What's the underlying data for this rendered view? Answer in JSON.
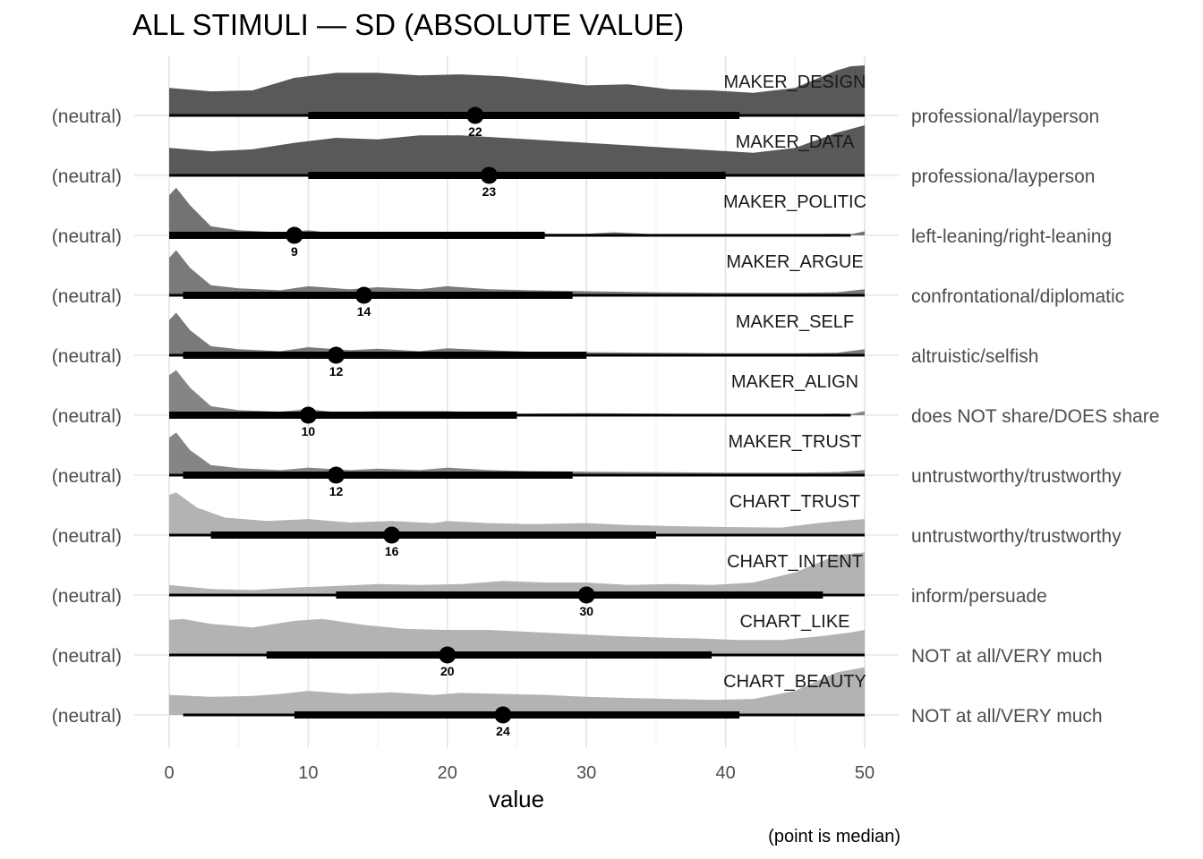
{
  "chart_data": {
    "type": "ridgeline",
    "title": "ALL STIMULI — SD (ABSOLUTE VALUE)",
    "xlabel": "value",
    "caption": "(point is median)",
    "xlim": [
      0,
      50
    ],
    "xticks": [
      0,
      10,
      20,
      30,
      40,
      50
    ],
    "grid": true,
    "left_label": "(neutral)",
    "rows": [
      {
        "name": "MAKER_DESIGN",
        "right_label": "professional/layperson",
        "median": 22,
        "interval_inner": [
          10,
          41
        ],
        "interval_outer": [
          0,
          50
        ],
        "color": "#595959",
        "density": [
          [
            0,
            0.55
          ],
          [
            3,
            0.48
          ],
          [
            6,
            0.5
          ],
          [
            9,
            0.75
          ],
          [
            12,
            0.85
          ],
          [
            15,
            0.85
          ],
          [
            18,
            0.8
          ],
          [
            21,
            0.82
          ],
          [
            24,
            0.78
          ],
          [
            27,
            0.7
          ],
          [
            30,
            0.6
          ],
          [
            33,
            0.62
          ],
          [
            36,
            0.52
          ],
          [
            39,
            0.5
          ],
          [
            42,
            0.45
          ],
          [
            45,
            0.55
          ],
          [
            48,
            0.9
          ],
          [
            49,
            0.98
          ],
          [
            50,
            1.0
          ]
        ]
      },
      {
        "name": "MAKER_DATA",
        "right_label": "professiona/layperson",
        "median": 23,
        "interval_inner": [
          10,
          40
        ],
        "interval_outer": [
          0,
          50
        ],
        "color": "#595959",
        "density": [
          [
            0,
            0.55
          ],
          [
            3,
            0.48
          ],
          [
            6,
            0.52
          ],
          [
            9,
            0.65
          ],
          [
            12,
            0.75
          ],
          [
            15,
            0.72
          ],
          [
            18,
            0.8
          ],
          [
            21,
            0.8
          ],
          [
            24,
            0.75
          ],
          [
            27,
            0.7
          ],
          [
            30,
            0.65
          ],
          [
            33,
            0.6
          ],
          [
            36,
            0.55
          ],
          [
            39,
            0.5
          ],
          [
            42,
            0.45
          ],
          [
            45,
            0.55
          ],
          [
            48,
            0.85
          ],
          [
            50,
            1.0
          ]
        ]
      },
      {
        "name": "MAKER_POLITIC",
        "right_label": "left-leaning/right-leaning",
        "median": 9,
        "interval_inner": [
          0,
          27
        ],
        "interval_outer": [
          0,
          49
        ],
        "color": "#737373",
        "density": [
          [
            0,
            0.8
          ],
          [
            0.5,
            0.95
          ],
          [
            1.5,
            0.6
          ],
          [
            3,
            0.18
          ],
          [
            5,
            0.1
          ],
          [
            8,
            0.06
          ],
          [
            10,
            0.1
          ],
          [
            12,
            0.04
          ],
          [
            15,
            0.06
          ],
          [
            20,
            0.05
          ],
          [
            25,
            0.03
          ],
          [
            30,
            0.03
          ],
          [
            32,
            0.06
          ],
          [
            35,
            0.02
          ],
          [
            40,
            0.02
          ],
          [
            45,
            0.02
          ],
          [
            48,
            0.03
          ],
          [
            49,
            0.02
          ],
          [
            50,
            0.08
          ]
        ]
      },
      {
        "name": "MAKER_ARGUE",
        "right_label": "confrontational/diplomatic",
        "median": 14,
        "interval_inner": [
          1,
          29
        ],
        "interval_outer": [
          0,
          50
        ],
        "color": "#7a7a7a",
        "density": [
          [
            0,
            0.75
          ],
          [
            0.5,
            0.9
          ],
          [
            1.5,
            0.55
          ],
          [
            3,
            0.2
          ],
          [
            5,
            0.14
          ],
          [
            8,
            0.1
          ],
          [
            10,
            0.18
          ],
          [
            13,
            0.12
          ],
          [
            15,
            0.16
          ],
          [
            18,
            0.12
          ],
          [
            20,
            0.18
          ],
          [
            23,
            0.12
          ],
          [
            26,
            0.1
          ],
          [
            30,
            0.08
          ],
          [
            35,
            0.06
          ],
          [
            40,
            0.05
          ],
          [
            45,
            0.05
          ],
          [
            48,
            0.06
          ],
          [
            50,
            0.12
          ]
        ]
      },
      {
        "name": "MAKER_SELF",
        "right_label": "altruistic/selfish",
        "median": 12,
        "interval_inner": [
          1,
          30
        ],
        "interval_outer": [
          0,
          50
        ],
        "color": "#7a7a7a",
        "density": [
          [
            0,
            0.7
          ],
          [
            0.5,
            0.85
          ],
          [
            1.5,
            0.5
          ],
          [
            3,
            0.18
          ],
          [
            5,
            0.12
          ],
          [
            8,
            0.08
          ],
          [
            10,
            0.16
          ],
          [
            13,
            0.1
          ],
          [
            15,
            0.13
          ],
          [
            18,
            0.08
          ],
          [
            20,
            0.14
          ],
          [
            23,
            0.1
          ],
          [
            26,
            0.07
          ],
          [
            30,
            0.06
          ],
          [
            35,
            0.05
          ],
          [
            40,
            0.04
          ],
          [
            45,
            0.04
          ],
          [
            48,
            0.05
          ],
          [
            50,
            0.12
          ]
        ]
      },
      {
        "name": "MAKER_ALIGN",
        "right_label": "does NOT share/DOES share",
        "median": 10,
        "interval_inner": [
          0,
          25
        ],
        "interval_outer": [
          0,
          49
        ],
        "color": "#858585",
        "density": [
          [
            0,
            0.8
          ],
          [
            0.5,
            0.9
          ],
          [
            1.5,
            0.55
          ],
          [
            3,
            0.18
          ],
          [
            5,
            0.1
          ],
          [
            8,
            0.07
          ],
          [
            10,
            0.12
          ],
          [
            12,
            0.06
          ],
          [
            15,
            0.08
          ],
          [
            20,
            0.08
          ],
          [
            23,
            0.04
          ],
          [
            25,
            0.03
          ],
          [
            30,
            0.04
          ],
          [
            35,
            0.03
          ],
          [
            40,
            0.02
          ],
          [
            45,
            0.02
          ],
          [
            48,
            0.03
          ],
          [
            49,
            0.02
          ],
          [
            50,
            0.08
          ]
        ]
      },
      {
        "name": "MAKER_TRUST",
        "right_label": "untrustworthy/trustworthy",
        "median": 12,
        "interval_inner": [
          1,
          29
        ],
        "interval_outer": [
          0,
          50
        ],
        "color": "#858585",
        "density": [
          [
            0,
            0.75
          ],
          [
            0.5,
            0.85
          ],
          [
            1.5,
            0.5
          ],
          [
            3,
            0.2
          ],
          [
            5,
            0.14
          ],
          [
            8,
            0.1
          ],
          [
            10,
            0.15
          ],
          [
            13,
            0.1
          ],
          [
            15,
            0.13
          ],
          [
            18,
            0.1
          ],
          [
            20,
            0.15
          ],
          [
            23,
            0.1
          ],
          [
            26,
            0.08
          ],
          [
            30,
            0.07
          ],
          [
            35,
            0.06
          ],
          [
            40,
            0.05
          ],
          [
            45,
            0.05
          ],
          [
            48,
            0.06
          ],
          [
            50,
            0.1
          ]
        ]
      },
      {
        "name": "CHART_TRUST",
        "right_label": "untrustworthy/trustworthy",
        "median": 16,
        "interval_inner": [
          3,
          35
        ],
        "interval_outer": [
          0,
          50
        ],
        "color": "#b3b3b3",
        "density": [
          [
            0,
            0.8
          ],
          [
            0.5,
            0.85
          ],
          [
            2,
            0.55
          ],
          [
            4,
            0.35
          ],
          [
            7,
            0.28
          ],
          [
            10,
            0.32
          ],
          [
            13,
            0.25
          ],
          [
            16,
            0.28
          ],
          [
            19,
            0.24
          ],
          [
            20,
            0.28
          ],
          [
            23,
            0.24
          ],
          [
            26,
            0.22
          ],
          [
            30,
            0.24
          ],
          [
            33,
            0.2
          ],
          [
            36,
            0.18
          ],
          [
            40,
            0.16
          ],
          [
            44,
            0.15
          ],
          [
            47,
            0.25
          ],
          [
            49,
            0.3
          ],
          [
            50,
            0.32
          ]
        ]
      },
      {
        "name": "CHART_INTENT",
        "right_label": "inform/persuade",
        "median": 30,
        "interval_inner": [
          12,
          47
        ],
        "interval_outer": [
          0,
          50
        ],
        "color": "#b3b3b3",
        "density": [
          [
            0,
            0.2
          ],
          [
            3,
            0.12
          ],
          [
            6,
            0.1
          ],
          [
            9,
            0.15
          ],
          [
            12,
            0.18
          ],
          [
            15,
            0.22
          ],
          [
            18,
            0.2
          ],
          [
            21,
            0.22
          ],
          [
            24,
            0.28
          ],
          [
            27,
            0.25
          ],
          [
            30,
            0.25
          ],
          [
            33,
            0.2
          ],
          [
            36,
            0.22
          ],
          [
            39,
            0.2
          ],
          [
            42,
            0.25
          ],
          [
            45,
            0.45
          ],
          [
            48,
            0.8
          ],
          [
            50,
            0.85
          ]
        ]
      },
      {
        "name": "CHART_LIKE",
        "right_label": "NOT at all/VERY much",
        "median": 20,
        "interval_inner": [
          7,
          39
        ],
        "interval_outer": [
          0,
          50
        ],
        "color": "#b3b3b3",
        "density": [
          [
            0,
            0.7
          ],
          [
            1,
            0.72
          ],
          [
            3,
            0.62
          ],
          [
            6,
            0.55
          ],
          [
            9,
            0.68
          ],
          [
            11,
            0.72
          ],
          [
            14,
            0.6
          ],
          [
            17,
            0.52
          ],
          [
            20,
            0.5
          ],
          [
            23,
            0.5
          ],
          [
            26,
            0.46
          ],
          [
            29,
            0.42
          ],
          [
            32,
            0.38
          ],
          [
            35,
            0.35
          ],
          [
            38,
            0.33
          ],
          [
            41,
            0.3
          ],
          [
            44,
            0.3
          ],
          [
            47,
            0.38
          ],
          [
            49,
            0.45
          ],
          [
            50,
            0.5
          ]
        ]
      },
      {
        "name": "CHART_BEAUTY",
        "right_label": "NOT at all/VERY much",
        "median": 24,
        "interval_inner": [
          9,
          41
        ],
        "interval_outer": [
          1,
          50
        ],
        "color": "#b3b3b3",
        "density": [
          [
            0,
            0.4
          ],
          [
            3,
            0.36
          ],
          [
            6,
            0.38
          ],
          [
            8,
            0.42
          ],
          [
            10,
            0.48
          ],
          [
            13,
            0.42
          ],
          [
            16,
            0.45
          ],
          [
            19,
            0.4
          ],
          [
            21,
            0.44
          ],
          [
            24,
            0.42
          ],
          [
            27,
            0.4
          ],
          [
            30,
            0.36
          ],
          [
            33,
            0.34
          ],
          [
            36,
            0.32
          ],
          [
            39,
            0.3
          ],
          [
            42,
            0.32
          ],
          [
            45,
            0.48
          ],
          [
            48,
            0.85
          ],
          [
            50,
            0.95
          ]
        ]
      }
    ]
  }
}
